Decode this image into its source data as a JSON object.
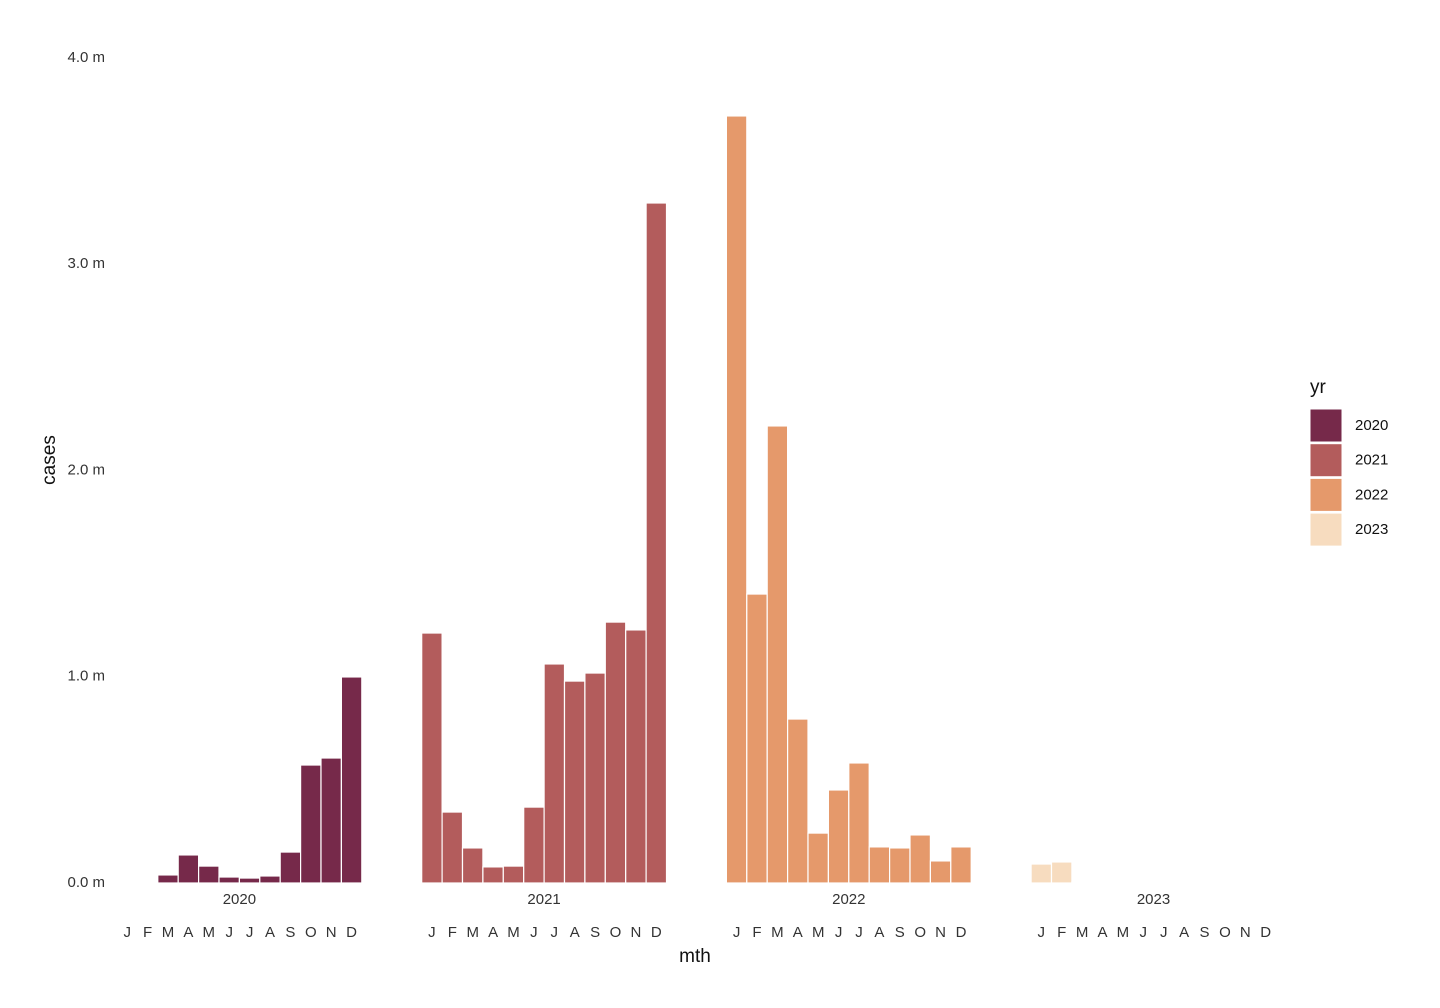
{
  "chart_data": {
    "type": "bar",
    "x_label": "mth",
    "y_label": "cases",
    "legend_title": "yr",
    "grid": false,
    "categories": [
      "J",
      "F",
      "M",
      "A",
      "M",
      "J",
      "J",
      "A",
      "S",
      "O",
      "N",
      "D"
    ],
    "ylim": [
      0,
      4
    ],
    "yticks": [
      {
        "value": 0,
        "label": "0.0 m"
      },
      {
        "value": 1,
        "label": "1.0 m"
      },
      {
        "value": 2,
        "label": "2.0 m"
      },
      {
        "value": 3,
        "label": "3.0 m"
      },
      {
        "value": 4,
        "label": "4.0 m"
      }
    ],
    "series": [
      {
        "name": "2020",
        "color": "#76294a",
        "values": [
          0,
          0,
          0.039,
          0.136,
          0.082,
          0.029,
          0.024,
          0.034,
          0.15,
          0.572,
          0.606,
          0.999
        ]
      },
      {
        "name": "2021",
        "color": "#b35c5c",
        "values": [
          1.212,
          0.344,
          0.17,
          0.078,
          0.082,
          0.368,
          1.062,
          0.979,
          1.018,
          1.265,
          1.227,
          3.297
        ]
      },
      {
        "name": "2022",
        "color": "#e5996b",
        "values": [
          3.719,
          1.401,
          2.216,
          0.795,
          0.242,
          0.451,
          0.582,
          0.175,
          0.17,
          0.233,
          0.107,
          0.175
        ]
      },
      {
        "name": "2023",
        "color": "#f7dcbf",
        "values": [
          0.092,
          0.102,
          0.005,
          null,
          null,
          null,
          null,
          null,
          null,
          null,
          null,
          null
        ]
      }
    ]
  }
}
